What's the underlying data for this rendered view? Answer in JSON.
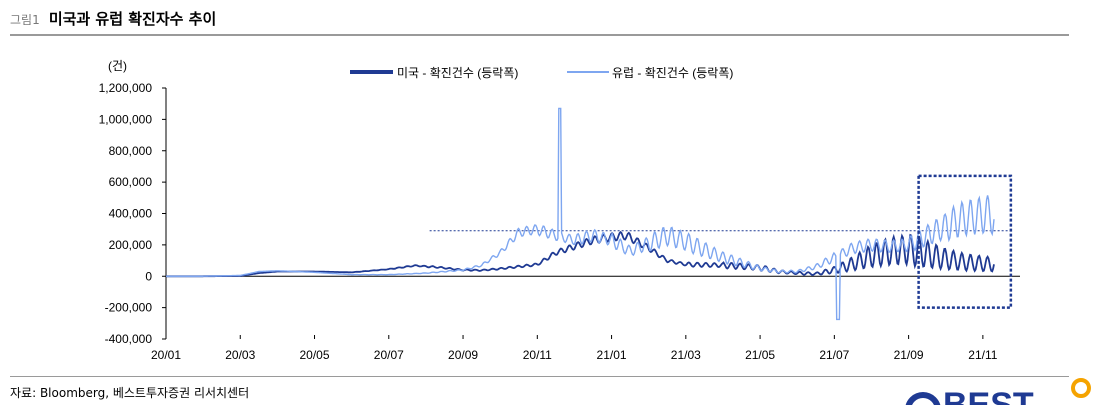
{
  "figure": {
    "number": "그림1",
    "title": "미국과 유럽 확진자수 추이",
    "source": "자료: Bloomberg, 베스트투자증권 리서치센터"
  },
  "logo": {
    "text": "BEST"
  },
  "colors": {
    "us": "#1f3a93",
    "eu": "#7ea6f0",
    "highlight": "#1f3a93"
  },
  "chart_data": {
    "type": "line",
    "ylabel": "(건)",
    "ylim": [
      -400000,
      1200000
    ],
    "yticks": [
      "1,200,000",
      "1,000,000",
      "800,000",
      "600,000",
      "400,000",
      "200,000",
      "0",
      "-200,000",
      "-400,000"
    ],
    "ytick_values": [
      1200000,
      1000000,
      800000,
      600000,
      400000,
      200000,
      0,
      -200000,
      -400000
    ],
    "xticks": [
      "20/01",
      "20/03",
      "20/05",
      "20/07",
      "20/09",
      "20/11",
      "21/01",
      "21/03",
      "21/05",
      "21/07",
      "21/09",
      "21/11"
    ],
    "xlim_months": [
      0,
      23
    ],
    "legend": "top-center",
    "reference_line": {
      "value": 290000,
      "from": "20/08",
      "to": "21/11"
    },
    "highlight_box": {
      "from": "21/09",
      "to": "21/11",
      "y_range": [
        -200000,
        640000
      ]
    },
    "series": [
      {
        "name": "미국 - 확진건수 (등락폭)",
        "color": "#1f3a93",
        "weekly_amplitude": [
          0,
          0,
          0,
          0,
          0,
          0.03,
          0.05,
          0.08,
          0.1,
          0.1,
          0.1,
          0.1,
          0.1,
          0.1,
          0.18,
          0.28,
          0.35,
          0.5,
          0.55,
          0.55,
          0.6,
          0.6,
          0.6
        ],
        "points": [
          [
            0,
            0
          ],
          [
            1,
            0
          ],
          [
            2,
            2000
          ],
          [
            2.5,
            20000
          ],
          [
            3,
            30000
          ],
          [
            4,
            30000
          ],
          [
            5,
            25000
          ],
          [
            6,
            45000
          ],
          [
            6.7,
            68000
          ],
          [
            7.3,
            58000
          ],
          [
            8,
            40000
          ],
          [
            8.5,
            38000
          ],
          [
            9,
            48000
          ],
          [
            10,
            75000
          ],
          [
            10.5,
            150000
          ],
          [
            11,
            190000
          ],
          [
            11.5,
            230000
          ],
          [
            12,
            250000
          ],
          [
            12.4,
            260000
          ],
          [
            13,
            180000
          ],
          [
            13.5,
            100000
          ],
          [
            14,
            75000
          ],
          [
            15,
            70000
          ],
          [
            16,
            55000
          ],
          [
            16.5,
            30000
          ],
          [
            17,
            20000
          ],
          [
            17.5,
            15000
          ],
          [
            18,
            40000
          ],
          [
            18.5,
            80000
          ],
          [
            19,
            130000
          ],
          [
            19.5,
            160000
          ],
          [
            20,
            170000
          ],
          [
            20.5,
            140000
          ],
          [
            21,
            110000
          ],
          [
            21.5,
            90000
          ],
          [
            22,
            80000
          ],
          [
            22.3,
            75000
          ]
        ]
      },
      {
        "name": "유럽 - 확진건수 (등락폭)",
        "color": "#7ea6f0",
        "weekly_amplitude": [
          0,
          0,
          0,
          0,
          0,
          0.05,
          0.08,
          0.1,
          0.1,
          0.1,
          0.12,
          0.15,
          0.2,
          0.25,
          0.28,
          0.3,
          0.28,
          0.25,
          0.2,
          0.2,
          0.25,
          0.3,
          0.3
        ],
        "spikes": [
          [
            10.6,
            1070000
          ],
          [
            18.1,
            -275000
          ]
        ],
        "points": [
          [
            0,
            0
          ],
          [
            1,
            0
          ],
          [
            2,
            5000
          ],
          [
            2.5,
            30000
          ],
          [
            3,
            35000
          ],
          [
            4,
            25000
          ],
          [
            5,
            10000
          ],
          [
            6,
            10000
          ],
          [
            7,
            20000
          ],
          [
            8,
            40000
          ],
          [
            8.5,
            70000
          ],
          [
            9,
            150000
          ],
          [
            9.5,
            280000
          ],
          [
            10,
            300000
          ],
          [
            10.5,
            260000
          ],
          [
            11,
            230000
          ],
          [
            11.5,
            260000
          ],
          [
            12,
            230000
          ],
          [
            12.5,
            160000
          ],
          [
            13,
            210000
          ],
          [
            13.5,
            260000
          ],
          [
            14,
            220000
          ],
          [
            14.5,
            170000
          ],
          [
            15,
            120000
          ],
          [
            16,
            50000
          ],
          [
            16.5,
            30000
          ],
          [
            17,
            30000
          ],
          [
            17.5,
            60000
          ],
          [
            18,
            120000
          ],
          [
            18.5,
            180000
          ],
          [
            19,
            200000
          ],
          [
            19.5,
            190000
          ],
          [
            20,
            200000
          ],
          [
            20.5,
            260000
          ],
          [
            21,
            320000
          ],
          [
            21.5,
            370000
          ],
          [
            22,
            390000
          ],
          [
            22.2,
            400000
          ],
          [
            22.3,
            360000
          ]
        ]
      }
    ]
  }
}
